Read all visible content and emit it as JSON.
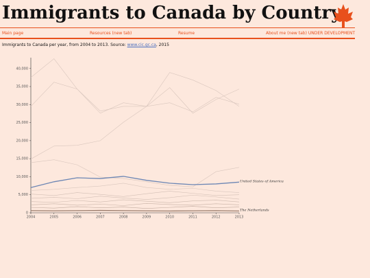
{
  "header": {
    "title": "Immigrants to Canada by Country"
  },
  "nav": [
    "Main page",
    "Resources (new tab)",
    "Resume",
    "About me (new tab) UNDER DEVELOPMENT"
  ],
  "caption": {
    "text": "Immigrants to Canada per year, from 2004 to 2013. Source: ",
    "link": "www.cic.gc.ca",
    "suffix": ", 2015"
  },
  "chart_data": {
    "type": "line",
    "x": [
      2004,
      2005,
      2006,
      2007,
      2008,
      2009,
      2010,
      2011,
      2012,
      2013
    ],
    "xlim": [
      2004,
      2013
    ],
    "xticks": [
      2004,
      2005,
      2006,
      2007,
      2008,
      2009,
      2010,
      2011,
      2012,
      2013
    ],
    "ylim": [
      0,
      43000
    ],
    "yticks": [
      0,
      {
        "value": 5000,
        "label": "5,000"
      },
      {
        "value": 10000,
        "label": "10,000"
      },
      {
        "value": 15000,
        "label": "15,000"
      },
      {
        "value": 20000,
        "label": "20,000"
      },
      {
        "value": 25000,
        "label": "25,000"
      },
      {
        "value": 30000,
        "label": "30,000"
      },
      {
        "value": 35000,
        "label": "35,000"
      },
      {
        "value": 40000,
        "label": "40,000"
      }
    ],
    "series": [
      {
        "color": "#d9c6bd",
        "values": [
          37500,
          42700,
          34300,
          28200,
          29500,
          29500,
          30500,
          28000,
          32000,
          30100
        ]
      },
      {
        "color": "#d9c6bd",
        "values": [
          29500,
          36200,
          34300,
          27600,
          30500,
          29500,
          38900,
          36800,
          33900,
          29500
        ]
      },
      {
        "color": "#d9c6bd",
        "values": [
          14900,
          18500,
          18700,
          20000,
          25100,
          29500,
          34700,
          27600,
          31400,
          34300
        ]
      },
      {
        "color": "#d9c6bd",
        "values": [
          13900,
          14700,
          13300,
          9900,
          9500,
          8600,
          7600,
          7200,
          11400,
          12600
        ]
      },
      {
        "color": "#d9c6bd",
        "values": [
          6200,
          6500,
          7000,
          7400,
          8200,
          7000,
          6500,
          6800,
          6000,
          5600
        ]
      },
      {
        "color": "#d3bfb5",
        "values": [
          5200,
          4800,
          5600,
          5100,
          4500,
          5300,
          6000,
          5400,
          4800,
          5000
        ]
      },
      {
        "color": "#d3bfb5",
        "values": [
          4000,
          4300,
          3900,
          4600,
          4100,
          3700,
          4200,
          4900,
          4400,
          3800
        ]
      },
      {
        "color": "#cdb8ad",
        "values": [
          3100,
          2900,
          3400,
          3000,
          3600,
          3200,
          2800,
          3300,
          3500,
          3000
        ]
      },
      {
        "color": "#c7b1a5",
        "values": [
          2200,
          2500,
          2100,
          2400,
          2000,
          2600,
          2300,
          2100,
          2500,
          2200
        ]
      },
      {
        "color": "#c1aa9e",
        "values": [
          1500,
          1300,
          1700,
          1400,
          1600,
          1200,
          1500,
          1800,
          1400,
          1600
        ]
      },
      {
        "name": "United States of America",
        "color": "#6c86b4",
        "values": [
          7000,
          8600,
          9700,
          9500,
          10100,
          9000,
          8200,
          7800,
          8000,
          8500
        ]
      },
      {
        "name": "The Netherlands",
        "color": "#9b7b6a",
        "values": [
          600,
          550,
          600,
          650,
          600,
          550,
          500,
          550,
          600,
          500
        ]
      }
    ]
  }
}
